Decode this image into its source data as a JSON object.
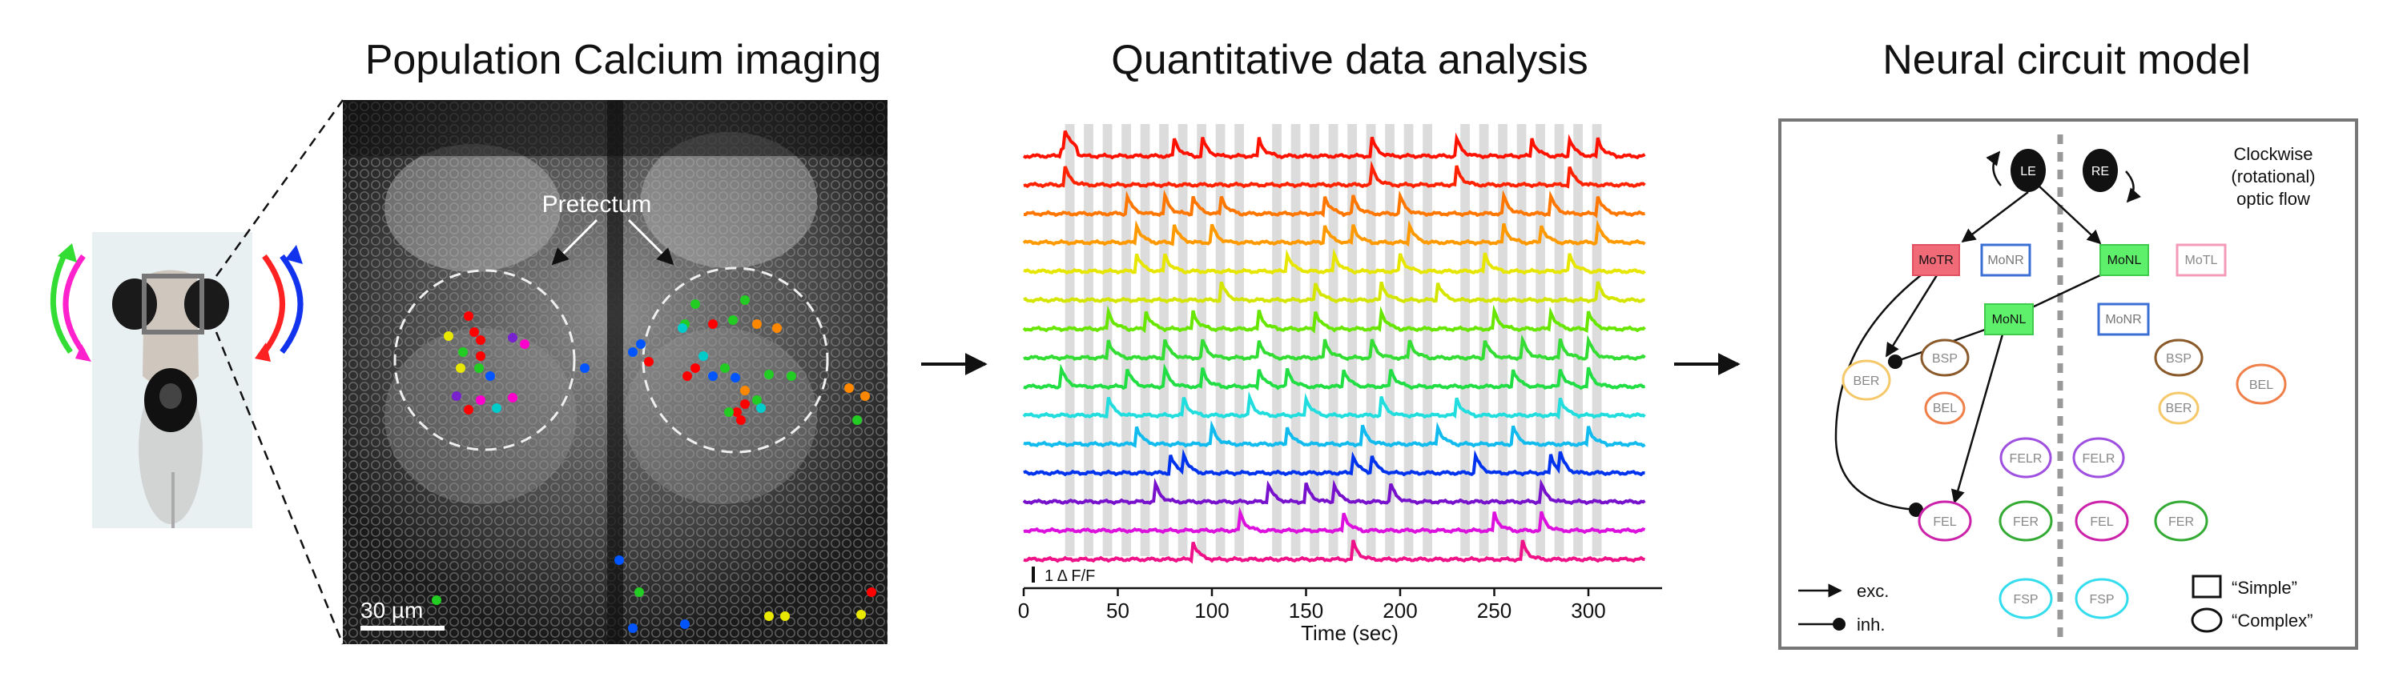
{
  "panels": {
    "imaging_title": "Population Calcium imaging",
    "analysis_title": "Quantitative data analysis",
    "model_title": "Neural circuit model"
  },
  "imaging": {
    "pretectum_label": "Pretectum",
    "scale_bar_label": "30 µm",
    "roi_colors": [
      "#ff0000",
      "#ff8800",
      "#e8e800",
      "#22cc22",
      "#00cccc",
      "#0055ff",
      "#7722cc",
      "#ff00cc"
    ]
  },
  "plot": {
    "x_axis_title": "Time (sec)",
    "x_ticks": [
      "0",
      "50",
      "100",
      "150",
      "200",
      "250",
      "300"
    ],
    "scale_label": "1 Δ F/F",
    "trace_colors": [
      "#ff1100",
      "#ff2200",
      "#ff7700",
      "#ff9900",
      "#e6e600",
      "#d4e600",
      "#66e600",
      "#33dd33",
      "#22dd44",
      "#22dddd",
      "#11bbee",
      "#0033ee",
      "#7711cc",
      "#dd11dd",
      "#ee1188"
    ]
  },
  "model": {
    "eye_left": "LE",
    "eye_right": "RE",
    "flow_label_1": "Clockwise",
    "flow_label_2": "(rotational)",
    "flow_label_3": "optic flow",
    "nodes": {
      "motr": "MoTR",
      "monr_top": "MoNR",
      "monl_top": "MoNL",
      "motl": "MoTL",
      "monl_mid": "MoNL",
      "monr_mid": "MoNR",
      "ber_left": "BER",
      "bsp_left": "BSP",
      "bel_left": "BEL",
      "bsp_right": "BSP",
      "ber_right": "BER",
      "bel_right": "BEL",
      "felr_left": "FELR",
      "felr_right": "FELR",
      "fel_left": "FEL",
      "fer_left": "FER",
      "fel_right": "FEL",
      "fer_right": "FER",
      "fsp_left": "FSP",
      "fsp_right": "FSP"
    },
    "legend": {
      "exc": "exc.",
      "inh": "inh.",
      "simple": "“Simple”",
      "complex": "“Complex”"
    }
  }
}
